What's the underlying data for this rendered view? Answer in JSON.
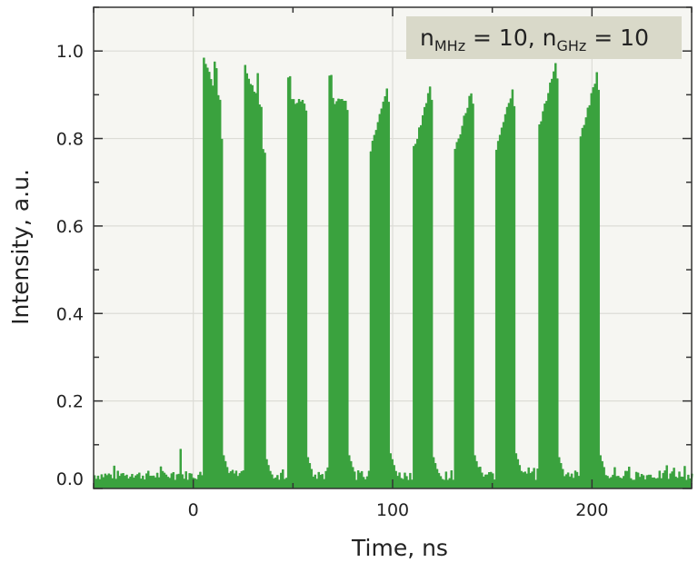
{
  "chart_data": {
    "type": "bar",
    "title": "",
    "xlabel": "Time, ns",
    "ylabel": "Intensity, a.u.",
    "xlim": [
      -50,
      250
    ],
    "ylim": [
      0,
      1.1
    ],
    "xticks": [
      0,
      100,
      200
    ],
    "xtick_labels": [
      "0",
      "100",
      "200"
    ],
    "xminor_step": 50,
    "yticks": [
      0.0,
      0.2,
      0.4,
      0.6,
      0.8,
      1.0
    ],
    "ytick_labels": [
      "0.0",
      "0.2",
      "0.4",
      "0.6",
      "0.8",
      "1.0"
    ],
    "yminor_step": 0.1,
    "grid": true,
    "series_color": "#3aa23e",
    "background_color": "#f6f6f2",
    "legend": {
      "position": "upper right",
      "text_n": "n",
      "sub1": "MHz",
      "eq1": " = 10, ",
      "text_n2": "n",
      "sub2": "GHz",
      "eq2": " = 10",
      "background": "#d9d9c9"
    },
    "baseline_noise_level": 0.03,
    "noise_spike": {
      "time_ns": -6.5,
      "value": 0.09
    },
    "pulse_period_ns": 21,
    "pulse_width_ns": 10,
    "pulses": [
      {
        "start_ns": 4.5,
        "peak": 0.99,
        "shape": "falling"
      },
      {
        "start_ns": 25.5,
        "peak": 0.97,
        "shape": "falling"
      },
      {
        "start_ns": 46.5,
        "peak": 0.95,
        "shape": "flat"
      },
      {
        "start_ns": 67.5,
        "peak": 0.95,
        "shape": "flat"
      },
      {
        "start_ns": 88.5,
        "peak": 0.95,
        "shape": "rising"
      },
      {
        "start_ns": 109.5,
        "peak": 0.94,
        "shape": "rising"
      },
      {
        "start_ns": 130.5,
        "peak": 0.94,
        "shape": "rising"
      },
      {
        "start_ns": 151.5,
        "peak": 0.95,
        "shape": "rising"
      },
      {
        "start_ns": 172.5,
        "peak": 1.0,
        "shape": "rising"
      },
      {
        "start_ns": 193.5,
        "peak": 0.98,
        "shape": "rising"
      }
    ]
  }
}
